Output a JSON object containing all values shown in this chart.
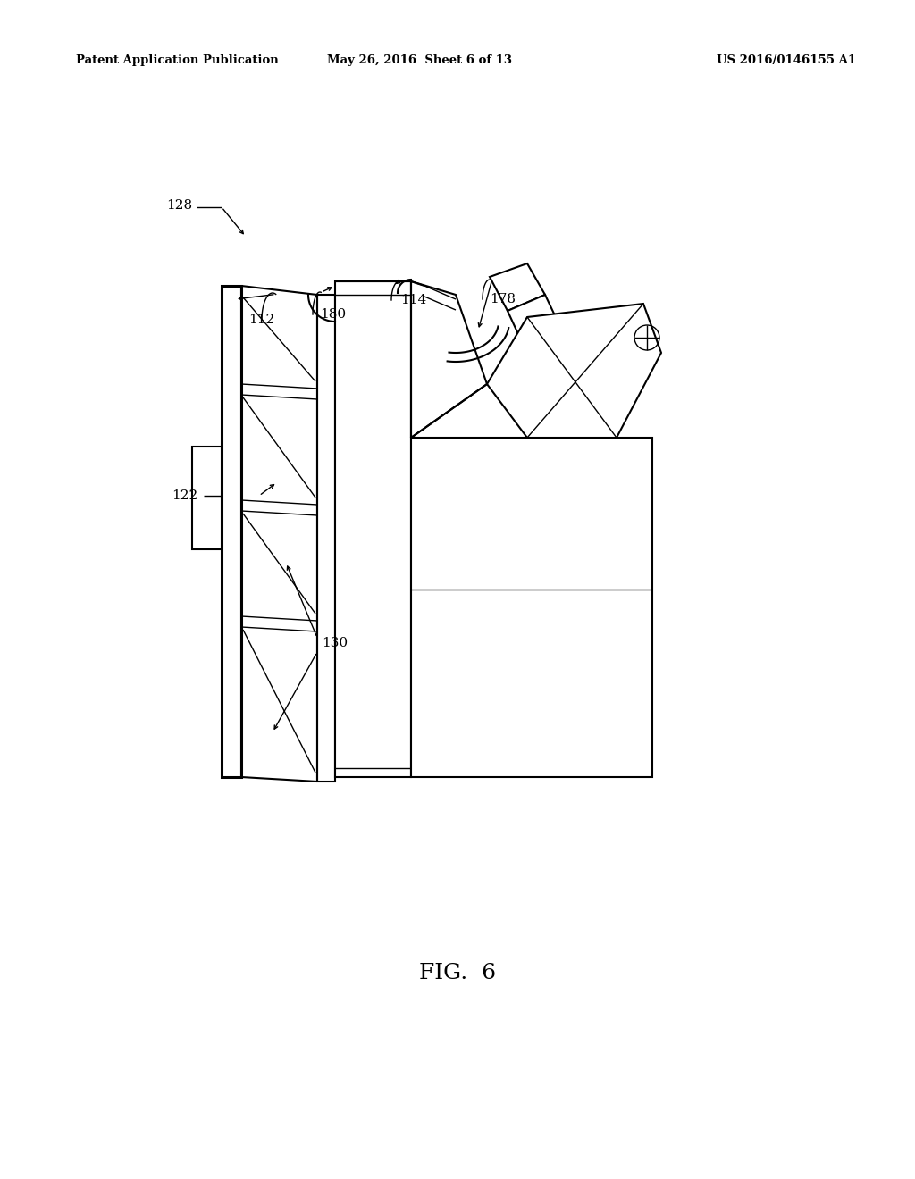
{
  "bg_color": "#ffffff",
  "line_color": "#000000",
  "header_left": "Patent Application Publication",
  "header_center": "May 26, 2016  Sheet 6 of 13",
  "header_right": "US 2016/0146155 A1",
  "fig_label": "FIG.  6",
  "ref_fontsize": 11,
  "header_fontsize": 9.5,
  "fig_label_fontsize": 18
}
